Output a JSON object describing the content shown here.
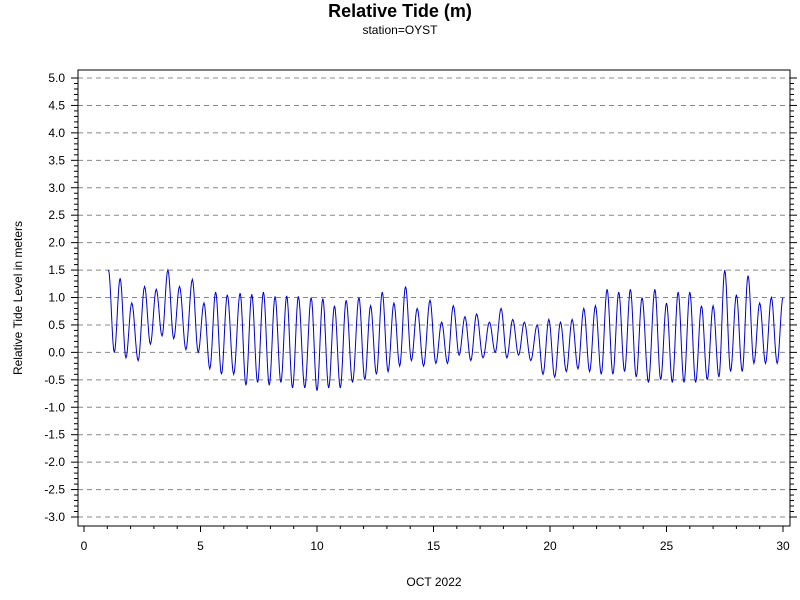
{
  "chart_data": {
    "type": "line",
    "title": "Relative Tide (m)",
    "subtitle": "station=OYST",
    "xlabel": "OCT 2022",
    "ylabel": "Relative Tide Level in meters",
    "xlim": [
      0,
      30
    ],
    "ylim": [
      -3.0,
      5.0
    ],
    "xticks": [
      "0",
      "5",
      "10",
      "15",
      "20",
      "25",
      "30"
    ],
    "yticks": [
      "5.0",
      "4.5",
      "4.0",
      "3.5",
      "3.0",
      "2.5",
      "2.0",
      "1.5",
      "1.0",
      "0.5",
      "0.0",
      "-0.5",
      "-1.0",
      "-1.5",
      "-2.0",
      "-2.5",
      "-3.0"
    ],
    "grid_y": true,
    "series": [
      {
        "color": "#0000cc",
        "x": [
          1.05,
          1.55,
          2.05,
          2.6,
          3.1,
          3.6,
          4.1,
          4.65,
          5.15,
          5.65,
          6.15,
          6.7,
          7.2,
          7.7,
          8.2,
          8.7,
          9.2,
          9.75,
          10.25,
          10.75,
          11.25,
          11.8,
          12.3,
          12.8,
          13.3,
          13.8,
          14.3,
          14.85,
          15.35,
          15.85,
          16.35,
          16.85,
          17.4,
          17.9,
          18.4,
          18.9,
          19.45,
          19.95,
          20.45,
          20.95,
          21.45,
          21.95,
          22.45,
          22.95,
          23.45,
          23.95,
          24.5,
          25.0,
          25.5,
          26.0,
          26.5,
          27.0,
          27.5,
          28.0,
          28.5,
          29.0,
          29.5,
          30.0
        ],
        "highs": [
          1.5,
          1.35,
          0.9,
          1.2,
          1.15,
          1.5,
          1.2,
          1.33,
          0.9,
          1.1,
          1.05,
          1.08,
          1.06,
          1.1,
          1.02,
          1.03,
          1.02,
          1.0,
          0.98,
          0.85,
          0.95,
          1.0,
          0.85,
          1.1,
          0.9,
          1.2,
          0.8,
          0.95,
          0.55,
          0.85,
          0.65,
          0.7,
          0.55,
          0.8,
          0.6,
          0.55,
          0.5,
          0.6,
          0.55,
          0.6,
          0.8,
          0.85,
          1.15,
          1.1,
          1.15,
          1.0,
          1.15,
          0.9,
          1.1,
          1.1,
          0.85,
          0.85,
          1.5,
          1.05,
          1.4,
          0.9,
          1.0,
          1.0
        ],
        "lows": [
          0.0,
          -0.1,
          -0.15,
          0.15,
          0.3,
          0.25,
          0.05,
          0.0,
          -0.3,
          -0.4,
          -0.4,
          -0.6,
          -0.55,
          -0.6,
          -0.55,
          -0.65,
          -0.65,
          -0.7,
          -0.65,
          -0.65,
          -0.55,
          -0.5,
          -0.4,
          -0.35,
          -0.25,
          -0.15,
          -0.25,
          -0.2,
          -0.2,
          -0.05,
          -0.15,
          -0.1,
          0.0,
          -0.1,
          -0.05,
          -0.15,
          -0.4,
          -0.45,
          -0.35,
          -0.3,
          -0.35,
          -0.4,
          -0.4,
          -0.35,
          -0.45,
          -0.55,
          -0.5,
          -0.55,
          -0.55,
          -0.55,
          -0.5,
          -0.45,
          -0.35,
          -0.35,
          -0.2,
          -0.2,
          -0.2,
          -0.2
        ]
      }
    ]
  }
}
